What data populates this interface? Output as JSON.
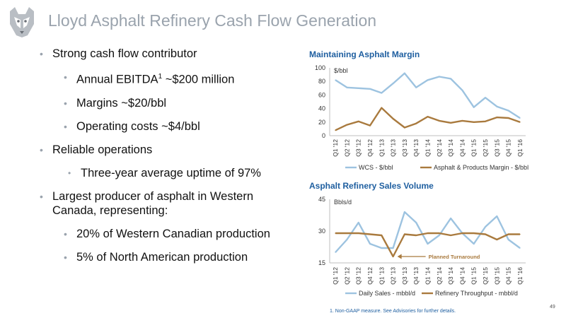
{
  "title": "Lloyd Asphalt Refinery Cash Flow Generation",
  "bullets": [
    {
      "level": 1,
      "text": "Strong cash flow contributor"
    },
    {
      "level": 2,
      "text": "Annual EBITDA",
      "sup": "1",
      "suffix": " ~$200 million"
    },
    {
      "level": 2,
      "text": "Margins ~$20/bbl"
    },
    {
      "level": 2,
      "text": "Operating costs ~$4/bbl"
    },
    {
      "level": 1,
      "text": "Reliable operations"
    },
    {
      "level": 3,
      "text": "Three-year average uptime of 97%"
    },
    {
      "level": 1,
      "text": "Largest producer of asphalt in Western Canada, representing:"
    },
    {
      "level": 2,
      "text": "20% of Western Canadian production"
    },
    {
      "level": 2,
      "text": "5% of North American production"
    }
  ],
  "chart_data": [
    {
      "type": "line",
      "title": "Maintaining Asphalt Margin",
      "ylabel": "$/bbl",
      "ylim": [
        0,
        100
      ],
      "yticks": [
        0,
        20,
        40,
        60,
        80,
        100
      ],
      "categories": [
        "Q1 '12",
        "Q2 '12",
        "Q3 '12",
        "Q4 '12",
        "Q1 '13",
        "Q2 '13",
        "Q3 '13",
        "Q4 '13",
        "Q1 '14",
        "Q2 '14",
        "Q3 '14",
        "Q4 '14",
        "Q1 '15",
        "Q2 '15",
        "Q3 '15",
        "Q4 '15",
        "Q1 '16"
      ],
      "series": [
        {
          "name": "WCS - $/bbl",
          "color": "#9dc3e0",
          "values": [
            82,
            71,
            70,
            69,
            63,
            77,
            92,
            71,
            82,
            87,
            84,
            67,
            42,
            56,
            43,
            37,
            26
          ]
        },
        {
          "name": "Asphalt & Products Margin - $/bbl",
          "color": "#a97a3e",
          "values": [
            8,
            16,
            21,
            15,
            41,
            25,
            12,
            18,
            28,
            22,
            19,
            22,
            20,
            21,
            27,
            26,
            20
          ]
        }
      ],
      "legend": "bottom",
      "grid": false
    },
    {
      "type": "line",
      "title": "Asphalt Refinery Sales Volume",
      "ylabel": "Bbls/d",
      "ylim": [
        15,
        45
      ],
      "yticks": [
        15,
        30,
        45
      ],
      "categories": [
        "Q1 '12",
        "Q2 '12",
        "Q3 '12",
        "Q4 '12",
        "Q1 '13",
        "Q2 '13",
        "Q3 '13",
        "Q4 '13",
        "Q1 '14",
        "Q2 '14",
        "Q3 '14",
        "Q4 '14",
        "Q1 '15",
        "Q2 '15",
        "Q3 '15",
        "Q4 '15",
        "Q1 '16"
      ],
      "series": [
        {
          "name": "Daily Sales - mbbl/d",
          "color": "#9dc3e0",
          "values": [
            20,
            26,
            34,
            24,
            22,
            22,
            39,
            34,
            24,
            28,
            36,
            29,
            24,
            32,
            37,
            26,
            22
          ]
        },
        {
          "name": "Refinery Throughput - mbbl/d",
          "color": "#a97a3e",
          "values": [
            29,
            29,
            29,
            28.5,
            28,
            18,
            28.5,
            28,
            29,
            29,
            28,
            29,
            29,
            28.5,
            26,
            28.5,
            28.5
          ]
        }
      ],
      "annotation": {
        "text": "Planned Turnaround",
        "category_index": 5,
        "value": 18
      },
      "legend": "bottom",
      "grid": false
    }
  ],
  "footnote": "1.  Non-GAAP measure.  See Advisories for further details.",
  "page_number": "49",
  "colors": {
    "title": "#9aa3ad",
    "chart_title": "#1f5fa0",
    "annotation": "#a97a3e"
  }
}
